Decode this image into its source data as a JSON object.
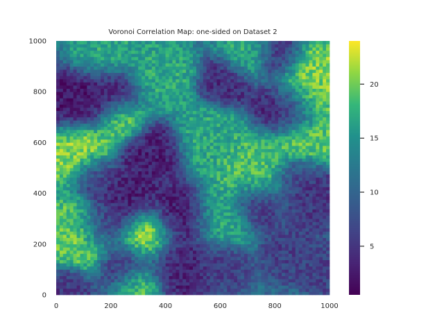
{
  "chart_data": {
    "type": "heatmap",
    "title": "Voronoi Correlation Map: one-sided on Dataset 2",
    "xlabel": "",
    "ylabel": "",
    "xlim": [
      0,
      1000
    ],
    "ylim": [
      0,
      1000
    ],
    "x_ticks": [
      "0",
      "200",
      "400",
      "600",
      "800",
      "1000"
    ],
    "y_ticks": [
      "0",
      "200",
      "400",
      "600",
      "800",
      "1000"
    ],
    "colormap": "viridis",
    "colorbar": {
      "range": [
        0.5,
        24
      ],
      "ticks": [
        "5",
        "10",
        "15",
        "20"
      ]
    },
    "grid": false,
    "value_field": {
      "base": 11,
      "noise_amplitude": 2.5,
      "features": [
        {
          "x": 330,
          "y": 225,
          "value": 23,
          "spread": 55
        },
        {
          "x": 100,
          "y": 230,
          "value": 20,
          "spread": 70
        },
        {
          "x": 85,
          "y": 570,
          "value": 21,
          "spread": 60
        },
        {
          "x": 240,
          "y": 690,
          "value": 21,
          "spread": 45
        },
        {
          "x": 300,
          "y": 45,
          "value": 20,
          "spread": 45
        },
        {
          "x": 920,
          "y": 880,
          "value": 21,
          "spread": 55
        },
        {
          "x": 930,
          "y": 780,
          "value": 20,
          "spread": 60
        },
        {
          "x": 900,
          "y": 600,
          "value": 20,
          "spread": 55
        },
        {
          "x": 740,
          "y": 500,
          "value": 19,
          "spread": 70
        },
        {
          "x": 600,
          "y": 300,
          "value": 17,
          "spread": 60
        },
        {
          "x": 560,
          "y": 620,
          "value": 17,
          "spread": 60
        },
        {
          "x": 380,
          "y": 860,
          "value": 17,
          "spread": 60
        },
        {
          "x": 180,
          "y": 950,
          "value": 17,
          "spread": 55
        },
        {
          "x": 700,
          "y": 950,
          "value": 17,
          "spread": 50
        },
        {
          "x": 70,
          "y": 760,
          "value": 2,
          "spread": 55
        },
        {
          "x": 190,
          "y": 790,
          "value": 3,
          "spread": 60
        },
        {
          "x": 350,
          "y": 560,
          "value": 3,
          "spread": 55
        },
        {
          "x": 250,
          "y": 380,
          "value": 3,
          "spread": 60
        },
        {
          "x": 180,
          "y": 270,
          "value": 3,
          "spread": 45
        },
        {
          "x": 460,
          "y": 300,
          "value": 2,
          "spread": 55
        },
        {
          "x": 440,
          "y": 120,
          "value": 3,
          "spread": 60
        },
        {
          "x": 250,
          "y": 120,
          "value": 4,
          "spread": 50
        },
        {
          "x": 620,
          "y": 840,
          "value": 4,
          "spread": 45
        },
        {
          "x": 840,
          "y": 730,
          "value": 3,
          "spread": 55
        },
        {
          "x": 820,
          "y": 940,
          "value": 4,
          "spread": 45
        },
        {
          "x": 950,
          "y": 380,
          "value": 5,
          "spread": 50
        },
        {
          "x": 740,
          "y": 350,
          "value": 5,
          "spread": 45
        },
        {
          "x": 880,
          "y": 470,
          "value": 5,
          "spread": 45
        },
        {
          "x": 600,
          "y": 120,
          "value": 6,
          "spread": 45
        },
        {
          "x": 860,
          "y": 160,
          "value": 6,
          "spread": 45
        },
        {
          "x": 40,
          "y": 30,
          "value": 5,
          "spread": 40
        },
        {
          "x": 150,
          "y": 470,
          "value": 6,
          "spread": 40
        },
        {
          "x": 980,
          "y": 100,
          "value": 6,
          "spread": 40
        }
      ]
    }
  }
}
